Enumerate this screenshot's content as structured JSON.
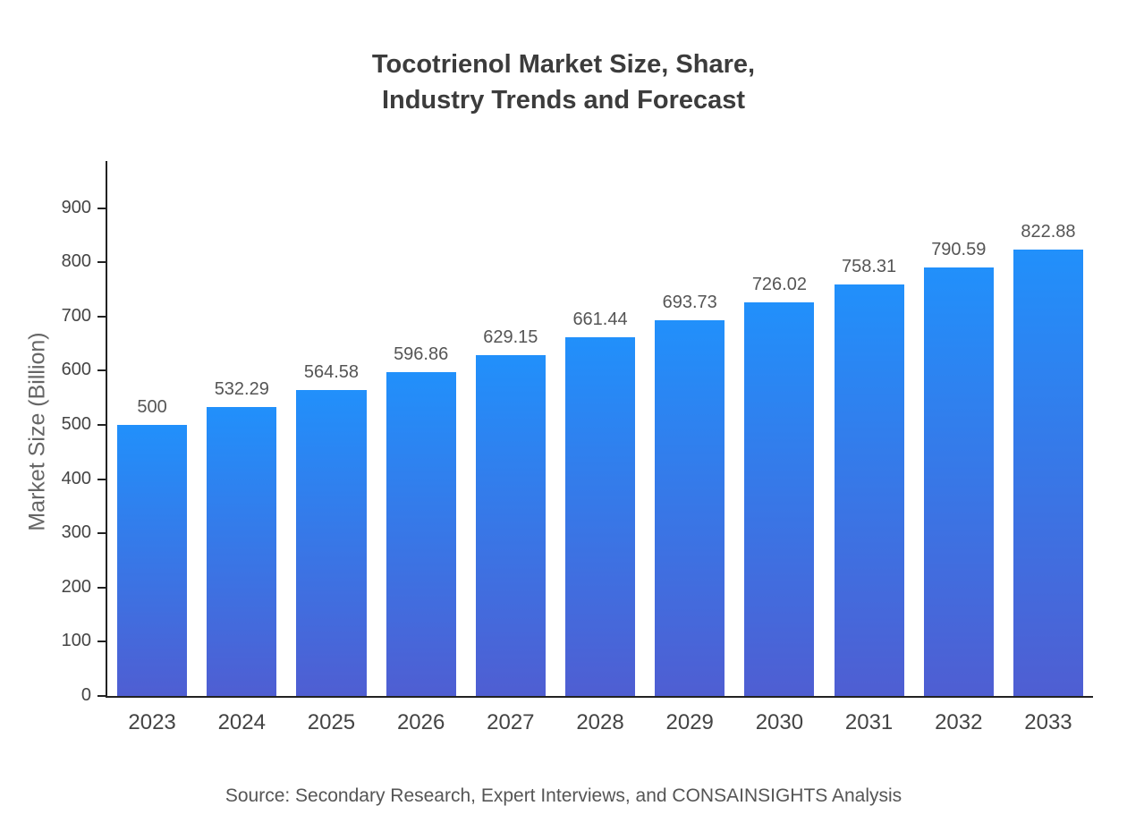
{
  "title": {
    "line1": "Tocotrienol Market Size, Share,",
    "line2": "Industry Trends and Forecast"
  },
  "chart_data": {
    "type": "bar",
    "title": "Tocotrienol Market Size, Share, Industry Trends and Forecast",
    "categories": [
      "2023",
      "2024",
      "2025",
      "2026",
      "2027",
      "2028",
      "2029",
      "2030",
      "2031",
      "2032",
      "2033"
    ],
    "values": [
      500,
      532.29,
      564.58,
      596.86,
      629.15,
      661.44,
      693.73,
      726.02,
      758.31,
      790.59,
      822.88
    ],
    "value_labels": [
      "500",
      "532.29",
      "564.58",
      "596.86",
      "629.15",
      "661.44",
      "693.73",
      "726.02",
      "758.31",
      "790.59",
      "822.88"
    ],
    "xlabel": "",
    "ylabel": "Market Size (Billion)",
    "ylim": [
      0,
      990
    ],
    "yticks": [
      0,
      100,
      200,
      300,
      400,
      500,
      600,
      700,
      800,
      900
    ],
    "grid": false,
    "legend": false,
    "bar_color_top": "#2190fb",
    "bar_color_bottom": "#4f5ed2"
  },
  "source": "Source: Secondary Research, Expert Interviews, and CONSAINSIGHTS Analysis"
}
